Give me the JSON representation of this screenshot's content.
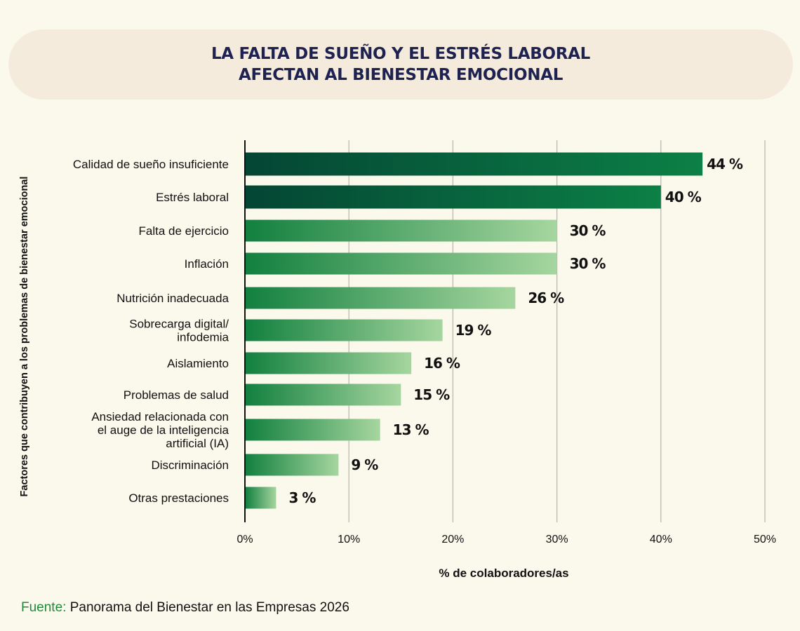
{
  "title": {
    "line1": "LA FALTA DE SUEÑO Y EL ESTRÉS LABORAL",
    "line2": "AFECTAN AL BIENESTAR EMOCIONAL"
  },
  "source": {
    "label": "Fuente:",
    "text": "Panorama del Bienestar en las Empresas 2026"
  },
  "colors": {
    "dark_start": "#044634",
    "dark_end": "#0c8046",
    "light_start": "#12803f",
    "light_end": "#a6d69f",
    "grid": "#b5b5b0",
    "axis": "#111111"
  },
  "chart_data": {
    "type": "bar",
    "orientation": "horizontal",
    "xlabel": "% de colaboradores/as",
    "ylabel": "Factores que contribuyen a los problemas de bienestar emocional",
    "xlim": [
      0,
      50
    ],
    "xticks": [
      "0%",
      "10%",
      "20%",
      "30%",
      "40%",
      "50%"
    ],
    "grid": "vertical",
    "categories": [
      [
        "Calidad de sueño insuficiente"
      ],
      [
        "Estrés laboral"
      ],
      [
        "Falta de ejercicio"
      ],
      [
        "Inflación"
      ],
      [
        "Nutrición inadecuada"
      ],
      [
        "Sobrecarga digital/",
        "infodemia"
      ],
      [
        "Aislamiento"
      ],
      [
        "Problemas de salud"
      ],
      [
        "Ansiedad relacionada con",
        "el auge de la inteligencia",
        "artificial (IA)"
      ],
      [
        "Discriminación"
      ],
      [
        "Otras prestaciones"
      ]
    ],
    "values": [
      44,
      40,
      30,
      30,
      26,
      19,
      16,
      15,
      13,
      9,
      3
    ],
    "data_labels": [
      "44 %",
      "40 %",
      "30 %",
      "30 %",
      "26 %",
      "19 %",
      "16 %",
      "15 %",
      "13 %",
      "9 %",
      "3 %"
    ],
    "highlighted": [
      true,
      true,
      false,
      false,
      false,
      false,
      false,
      false,
      false,
      false,
      false
    ]
  }
}
